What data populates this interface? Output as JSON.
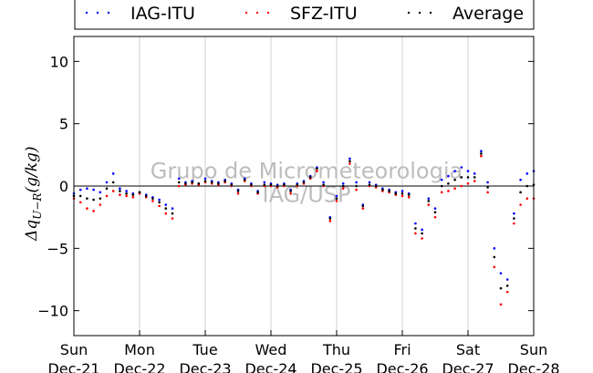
{
  "chart_data": {
    "type": "scatter",
    "ylabel": "Δq_{U−R}(g/kg)",
    "ylabel_main": "Δq",
    "ylabel_sub": "U−R",
    "ylabel_units": "(g/kg)",
    "ylim": [
      -12,
      12
    ],
    "yticks": [
      10,
      5,
      0,
      -5,
      -10
    ],
    "ytick_labels": [
      "10",
      "5",
      "0",
      "−5",
      "−10"
    ],
    "xlim": [
      "Dec-21",
      "Dec-28"
    ],
    "xticks": [
      {
        "day": "Sun",
        "date": "Dec-21"
      },
      {
        "day": "Mon",
        "date": "Dec-22"
      },
      {
        "day": "Tue",
        "date": "Dec-23"
      },
      {
        "day": "Wed",
        "date": "Dec-24"
      },
      {
        "day": "Thu",
        "date": "Dec-25"
      },
      {
        "day": "Fri",
        "date": "Dec-26"
      },
      {
        "day": "Sat",
        "date": "Dec-27"
      },
      {
        "day": "Sun",
        "date": "Dec-28"
      }
    ],
    "grid": "vertical",
    "zero_line": true,
    "legend_position": "top",
    "watermark": [
      "Grupo de Micrometeorologia",
      "IAG/USP"
    ],
    "series": [
      {
        "name": "IAG-ITU",
        "color": "#0000ff",
        "x": [
          0,
          0.1,
          0.2,
          0.3,
          0.4,
          0.5,
          0.6,
          0.7,
          0.8,
          0.9,
          1.0,
          1.1,
          1.2,
          1.3,
          1.4,
          1.5,
          1.6,
          1.7,
          1.8,
          1.9,
          2.0,
          2.1,
          2.2,
          2.3,
          2.4,
          2.5,
          2.6,
          2.7,
          2.8,
          2.9,
          3.0,
          3.1,
          3.2,
          3.3,
          3.4,
          3.5,
          3.6,
          3.7,
          3.8,
          3.9,
          4.0,
          4.1,
          4.2,
          4.3,
          4.4,
          4.5,
          4.6,
          4.7,
          4.8,
          4.9,
          5.0,
          5.1,
          5.2,
          5.3,
          5.4,
          5.5,
          5.6,
          5.7,
          5.8,
          5.9,
          6.0,
          6.1,
          6.2,
          6.3,
          6.4,
          6.5,
          6.6,
          6.7,
          6.8,
          6.9,
          7.0
        ],
        "y": [
          -0.6,
          -0.3,
          -0.2,
          -0.3,
          -0.5,
          0.3,
          1.0,
          -0.2,
          -0.4,
          -0.6,
          -0.5,
          -0.7,
          -0.9,
          -1.1,
          -1.5,
          -1.8,
          0.6,
          0.3,
          0.4,
          0.2,
          0.6,
          0.4,
          0.3,
          0.5,
          0.2,
          -0.3,
          0.6,
          0.2,
          -0.4,
          0.3,
          0.2,
          0.1,
          0.2,
          -0.3,
          0.2,
          0.4,
          0.8,
          1.5,
          0.3,
          -2.5,
          -0.8,
          0.2,
          2.2,
          0.3,
          -1.5,
          0.3,
          0.1,
          -0.2,
          -0.3,
          -0.5,
          -0.4,
          -0.6,
          -3.0,
          -3.5,
          -1.0,
          -1.8,
          0.5,
          0.8,
          1.2,
          1.5,
          1.2,
          1.0,
          2.8,
          0.3,
          -5.0,
          -7.0,
          -7.5,
          -2.2,
          0.5,
          1.0,
          1.2
        ]
      },
      {
        "name": "SFZ-ITU",
        "color": "#ff0000",
        "x": [
          0,
          0.1,
          0.2,
          0.3,
          0.4,
          0.5,
          0.6,
          0.7,
          0.8,
          0.9,
          1.0,
          1.1,
          1.2,
          1.3,
          1.4,
          1.5,
          1.6,
          1.7,
          1.8,
          1.9,
          2.0,
          2.1,
          2.2,
          2.3,
          2.4,
          2.5,
          2.6,
          2.7,
          2.8,
          2.9,
          3.0,
          3.1,
          3.2,
          3.3,
          3.4,
          3.5,
          3.6,
          3.7,
          3.8,
          3.9,
          4.0,
          4.1,
          4.2,
          4.3,
          4.4,
          4.5,
          4.6,
          4.7,
          4.8,
          4.9,
          5.0,
          5.1,
          5.2,
          5.3,
          5.4,
          5.5,
          5.6,
          5.7,
          5.8,
          5.9,
          6.0,
          6.1,
          6.2,
          6.3,
          6.4,
          6.5,
          6.6,
          6.7,
          6.8,
          6.9,
          7.0
        ],
        "y": [
          -1.0,
          -1.3,
          -1.8,
          -2.0,
          -1.5,
          -0.8,
          -0.4,
          -0.7,
          -0.8,
          -0.9,
          -0.6,
          -0.9,
          -1.2,
          -1.6,
          -2.2,
          -2.6,
          0.0,
          0.1,
          0.2,
          0.1,
          0.3,
          0.2,
          0.1,
          0.3,
          0.0,
          -0.6,
          0.4,
          0.0,
          -0.6,
          0.0,
          0.0,
          -0.1,
          0.0,
          -0.6,
          0.0,
          0.2,
          0.6,
          1.2,
          0.0,
          -2.8,
          -1.2,
          -0.2,
          1.8,
          -0.3,
          -1.8,
          0.0,
          -0.1,
          -0.4,
          -0.5,
          -0.7,
          -0.8,
          -0.9,
          -3.8,
          -4.2,
          -1.5,
          -2.5,
          -0.5,
          -0.4,
          -0.2,
          0.0,
          0.2,
          0.4,
          2.4,
          -0.5,
          -6.5,
          -9.5,
          -8.5,
          -3.0,
          -1.5,
          -1.0,
          -1.0
        ]
      },
      {
        "name": "Average",
        "color": "#000000",
        "x": [
          0,
          0.1,
          0.2,
          0.3,
          0.4,
          0.5,
          0.6,
          0.7,
          0.8,
          0.9,
          1.0,
          1.1,
          1.2,
          1.3,
          1.4,
          1.5,
          1.6,
          1.7,
          1.8,
          1.9,
          2.0,
          2.1,
          2.2,
          2.3,
          2.4,
          2.5,
          2.6,
          2.7,
          2.8,
          2.9,
          3.0,
          3.1,
          3.2,
          3.3,
          3.4,
          3.5,
          3.6,
          3.7,
          3.8,
          3.9,
          4.0,
          4.1,
          4.2,
          4.3,
          4.4,
          4.5,
          4.6,
          4.7,
          4.8,
          4.9,
          5.0,
          5.1,
          5.2,
          5.3,
          5.4,
          5.5,
          5.6,
          5.7,
          5.8,
          5.9,
          6.0,
          6.1,
          6.2,
          6.3,
          6.4,
          6.5,
          6.6,
          6.7,
          6.8,
          6.9,
          7.0
        ],
        "y": [
          -0.8,
          -0.8,
          -1.0,
          -1.1,
          -1.0,
          -0.2,
          0.3,
          -0.4,
          -0.6,
          -0.7,
          -0.5,
          -0.8,
          -1.0,
          -1.3,
          -1.8,
          -2.2,
          0.3,
          0.2,
          0.3,
          0.2,
          0.4,
          0.3,
          0.2,
          0.4,
          0.1,
          -0.4,
          0.5,
          0.1,
          -0.5,
          0.1,
          0.1,
          0.0,
          0.1,
          -0.4,
          0.1,
          0.3,
          0.7,
          1.4,
          0.1,
          -2.6,
          -1.0,
          0.0,
          2.0,
          0.0,
          -1.6,
          0.1,
          0.0,
          -0.3,
          -0.4,
          -0.6,
          -0.6,
          -0.7,
          -3.4,
          -3.8,
          -1.2,
          -2.1,
          0.0,
          0.2,
          0.5,
          0.7,
          0.7,
          0.7,
          2.6,
          -0.1,
          -5.7,
          -8.2,
          -8.0,
          -2.6,
          -0.5,
          0.0,
          0.1
        ]
      }
    ]
  }
}
